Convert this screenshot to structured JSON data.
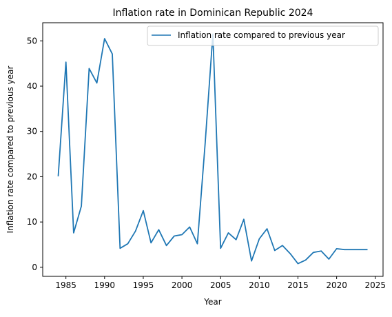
{
  "chart_data": {
    "type": "line",
    "title": "Inflation rate in Dominican Republic 2024",
    "xlabel": "Year",
    "ylabel": "Inflation rate compared to previous year",
    "xlim": [
      1982,
      2026
    ],
    "ylim": [
      -2,
      54
    ],
    "x_ticks": [
      "1985",
      "1990",
      "1995",
      "2000",
      "2005",
      "2010",
      "2015",
      "2020",
      "2025"
    ],
    "y_ticks": [
      "0",
      "10",
      "20",
      "30",
      "40",
      "50"
    ],
    "legend_position": "top-right",
    "grid": false,
    "series_color": "#1f77b4",
    "series": [
      {
        "name": "Inflation rate compared to previous year",
        "x": [
          1984,
          1985,
          1986,
          1987,
          1988,
          1989,
          1990,
          1991,
          1992,
          1993,
          1994,
          1995,
          1996,
          1997,
          1998,
          1999,
          2000,
          2001,
          2002,
          2003,
          2004,
          2005,
          2006,
          2007,
          2008,
          2009,
          2010,
          2011,
          2012,
          2013,
          2014,
          2015,
          2016,
          2017,
          2018,
          2019,
          2020,
          2021,
          2022,
          2023,
          2024
        ],
        "values": [
          20.1,
          45.3,
          7.6,
          13.5,
          43.9,
          40.7,
          50.5,
          47.1,
          4.2,
          5.2,
          8.0,
          12.5,
          5.4,
          8.3,
          4.8,
          6.9,
          7.2,
          8.9,
          5.2,
          27.4,
          51.5,
          4.2,
          7.6,
          6.1,
          10.6,
          1.4,
          6.3,
          8.5,
          3.7,
          4.8,
          3.0,
          0.8,
          1.6,
          3.3,
          3.6,
          1.8,
          4.1,
          3.9,
          3.9,
          3.9,
          3.9
        ]
      }
    ]
  }
}
